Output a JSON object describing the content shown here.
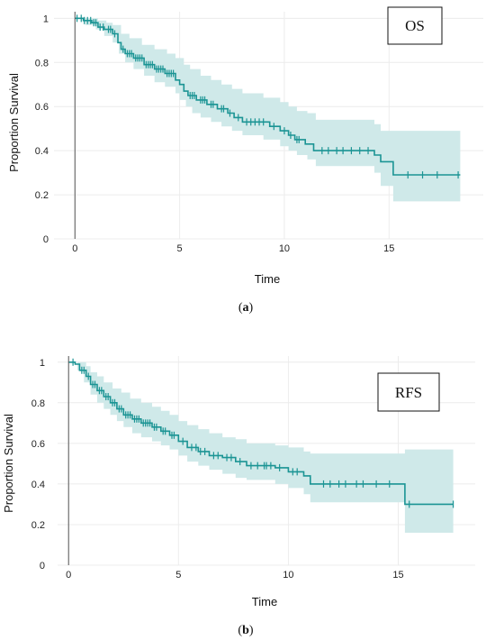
{
  "chart_data": [
    {
      "type": "line",
      "label_box": "OS",
      "xlabel": "Time",
      "ylabel": "Proportion Survival",
      "caption": {
        "open": "(",
        "letter": "a",
        "close": ")"
      },
      "xlim": [
        -1,
        19.5
      ],
      "ylim": [
        0,
        1.03
      ],
      "xticks": [
        0,
        5,
        10,
        15
      ],
      "yticks": [
        0,
        0.2,
        0.4,
        0.6,
        0.8,
        1
      ],
      "ytick_labels": [
        "0",
        "0.2",
        "0.4",
        "0.6",
        "0.8",
        "1"
      ],
      "grid": true,
      "color": "#1b9494",
      "band_color": "#cfe9e9",
      "survival": [
        [
          0,
          1
        ],
        [
          0.4,
          0.99
        ],
        [
          0.8,
          0.98
        ],
        [
          1.1,
          0.96
        ],
        [
          1.4,
          0.95
        ],
        [
          1.8,
          0.93
        ],
        [
          2.05,
          0.89
        ],
        [
          2.2,
          0.86
        ],
        [
          2.4,
          0.84
        ],
        [
          2.8,
          0.82
        ],
        [
          3.3,
          0.79
        ],
        [
          3.8,
          0.77
        ],
        [
          4.3,
          0.75
        ],
        [
          4.8,
          0.72
        ],
        [
          5.0,
          0.7
        ],
        [
          5.2,
          0.67
        ],
        [
          5.4,
          0.65
        ],
        [
          5.8,
          0.63
        ],
        [
          6.3,
          0.61
        ],
        [
          6.8,
          0.59
        ],
        [
          7.3,
          0.57
        ],
        [
          7.6,
          0.55
        ],
        [
          8.0,
          0.53
        ],
        [
          9.3,
          0.51
        ],
        [
          9.8,
          0.49
        ],
        [
          10.2,
          0.47
        ],
        [
          10.5,
          0.45
        ],
        [
          11.0,
          0.43
        ],
        [
          11.4,
          0.4
        ],
        [
          14.3,
          0.38
        ],
        [
          14.6,
          0.35
        ],
        [
          15.2,
          0.29
        ],
        [
          18.4,
          0.29
        ]
      ],
      "ci_upper": [
        [
          0,
          1
        ],
        [
          0.8,
          1
        ],
        [
          1.1,
          0.99
        ],
        [
          1.5,
          0.98
        ],
        [
          1.8,
          0.97
        ],
        [
          2.2,
          0.93
        ],
        [
          2.6,
          0.91
        ],
        [
          3.2,
          0.88
        ],
        [
          3.8,
          0.86
        ],
        [
          4.4,
          0.84
        ],
        [
          4.8,
          0.82
        ],
        [
          5.2,
          0.79
        ],
        [
          5.5,
          0.77
        ],
        [
          6.0,
          0.74
        ],
        [
          6.5,
          0.72
        ],
        [
          7.0,
          0.7
        ],
        [
          7.5,
          0.68
        ],
        [
          8.0,
          0.66
        ],
        [
          9.0,
          0.64
        ],
        [
          9.8,
          0.62
        ],
        [
          10.2,
          0.6
        ],
        [
          10.6,
          0.58
        ],
        [
          11.1,
          0.57
        ],
        [
          11.5,
          0.54
        ],
        [
          14.3,
          0.52
        ],
        [
          14.6,
          0.49
        ],
        [
          18.4,
          0.49
        ]
      ],
      "ci_lower": [
        [
          0,
          1
        ],
        [
          0.5,
          0.97
        ],
        [
          1.0,
          0.95
        ],
        [
          1.4,
          0.92
        ],
        [
          1.8,
          0.89
        ],
        [
          2.1,
          0.84
        ],
        [
          2.4,
          0.8
        ],
        [
          2.8,
          0.77
        ],
        [
          3.3,
          0.74
        ],
        [
          3.8,
          0.71
        ],
        [
          4.3,
          0.69
        ],
        [
          4.8,
          0.66
        ],
        [
          5.0,
          0.63
        ],
        [
          5.3,
          0.6
        ],
        [
          5.6,
          0.57
        ],
        [
          6.0,
          0.55
        ],
        [
          6.5,
          0.53
        ],
        [
          7.0,
          0.51
        ],
        [
          7.5,
          0.49
        ],
        [
          8.0,
          0.47
        ],
        [
          9.0,
          0.45
        ],
        [
          9.8,
          0.42
        ],
        [
          10.2,
          0.4
        ],
        [
          10.6,
          0.38
        ],
        [
          11.1,
          0.36
        ],
        [
          11.5,
          0.33
        ],
        [
          14.3,
          0.3
        ],
        [
          14.6,
          0.24
        ],
        [
          15.2,
          0.17
        ],
        [
          18.4,
          0.17
        ]
      ],
      "censor_times": [
        0.1,
        0.3,
        0.45,
        0.6,
        0.75,
        0.9,
        1.0,
        1.2,
        1.35,
        1.6,
        1.7,
        1.9,
        2.3,
        2.5,
        2.6,
        2.7,
        2.9,
        3.0,
        3.1,
        3.2,
        3.4,
        3.5,
        3.6,
        3.7,
        3.9,
        4.0,
        4.1,
        4.2,
        4.4,
        4.5,
        4.6,
        4.7,
        5.5,
        5.6,
        5.7,
        6.0,
        6.1,
        6.2,
        6.5,
        6.6,
        7.0,
        7.1,
        7.4,
        7.8,
        8.2,
        8.4,
        8.6,
        8.8,
        9.0,
        9.5,
        10.0,
        10.3,
        10.6,
        10.7,
        11.8,
        12.1,
        12.5,
        12.8,
        13.2,
        13.6,
        14.0,
        15.9,
        16.6,
        17.3,
        18.3
      ]
    },
    {
      "type": "line",
      "label_box": "RFS",
      "xlabel": "Time",
      "ylabel": "Proportion Survival",
      "caption": {
        "open": "(",
        "letter": "b",
        "close": ")"
      },
      "xlim": [
        -0.5,
        18.5
      ],
      "ylim": [
        0,
        1.03
      ],
      "xticks": [
        0,
        5,
        10,
        15
      ],
      "yticks": [
        0,
        0.2,
        0.4,
        0.6,
        0.8,
        1
      ],
      "ytick_labels": [
        "0",
        "0.2",
        "0.4",
        "0.6",
        "0.8",
        "1"
      ],
      "grid": true,
      "color": "#1b9494",
      "band_color": "#cfe9e9",
      "survival": [
        [
          0,
          1
        ],
        [
          0.3,
          0.99
        ],
        [
          0.5,
          0.96
        ],
        [
          0.8,
          0.93
        ],
        [
          1.0,
          0.89
        ],
        [
          1.3,
          0.86
        ],
        [
          1.6,
          0.83
        ],
        [
          1.9,
          0.8
        ],
        [
          2.2,
          0.77
        ],
        [
          2.5,
          0.74
        ],
        [
          2.9,
          0.72
        ],
        [
          3.3,
          0.7
        ],
        [
          3.8,
          0.68
        ],
        [
          4.2,
          0.66
        ],
        [
          4.6,
          0.64
        ],
        [
          5.0,
          0.61
        ],
        [
          5.4,
          0.58
        ],
        [
          5.9,
          0.56
        ],
        [
          6.4,
          0.54
        ],
        [
          7.0,
          0.53
        ],
        [
          7.6,
          0.51
        ],
        [
          8.1,
          0.49
        ],
        [
          9.4,
          0.48
        ],
        [
          10.0,
          0.46
        ],
        [
          10.7,
          0.44
        ],
        [
          11.0,
          0.4
        ],
        [
          15.3,
          0.3
        ],
        [
          17.5,
          0.3
        ]
      ],
      "ci_upper": [
        [
          0,
          1
        ],
        [
          0.5,
          1
        ],
        [
          0.8,
          0.98
        ],
        [
          1.0,
          0.95
        ],
        [
          1.3,
          0.93
        ],
        [
          1.6,
          0.9
        ],
        [
          2.0,
          0.87
        ],
        [
          2.4,
          0.85
        ],
        [
          2.8,
          0.82
        ],
        [
          3.3,
          0.8
        ],
        [
          3.8,
          0.78
        ],
        [
          4.2,
          0.76
        ],
        [
          4.6,
          0.74
        ],
        [
          5.0,
          0.71
        ],
        [
          5.4,
          0.69
        ],
        [
          5.9,
          0.67
        ],
        [
          6.4,
          0.65
        ],
        [
          7.0,
          0.63
        ],
        [
          7.6,
          0.62
        ],
        [
          8.1,
          0.6
        ],
        [
          9.4,
          0.59
        ],
        [
          10.0,
          0.58
        ],
        [
          10.7,
          0.56
        ],
        [
          11.0,
          0.55
        ],
        [
          15.3,
          0.57
        ],
        [
          17.5,
          0.57
        ]
      ],
      "ci_lower": [
        [
          0,
          1
        ],
        [
          0.4,
          0.96
        ],
        [
          0.7,
          0.9
        ],
        [
          1.0,
          0.84
        ],
        [
          1.3,
          0.8
        ],
        [
          1.6,
          0.77
        ],
        [
          1.9,
          0.74
        ],
        [
          2.2,
          0.71
        ],
        [
          2.5,
          0.68
        ],
        [
          2.9,
          0.65
        ],
        [
          3.3,
          0.63
        ],
        [
          3.8,
          0.61
        ],
        [
          4.2,
          0.59
        ],
        [
          4.6,
          0.57
        ],
        [
          5.0,
          0.54
        ],
        [
          5.4,
          0.51
        ],
        [
          5.9,
          0.49
        ],
        [
          6.4,
          0.47
        ],
        [
          7.0,
          0.45
        ],
        [
          7.6,
          0.43
        ],
        [
          8.1,
          0.42
        ],
        [
          9.4,
          0.4
        ],
        [
          10.0,
          0.38
        ],
        [
          10.7,
          0.35
        ],
        [
          11.0,
          0.31
        ],
        [
          15.3,
          0.16
        ],
        [
          17.5,
          0.16
        ]
      ],
      "censor_times": [
        0.2,
        0.6,
        0.7,
        0.9,
        1.1,
        1.2,
        1.4,
        1.5,
        1.7,
        1.8,
        2.0,
        2.1,
        2.3,
        2.4,
        2.6,
        2.7,
        2.8,
        3.0,
        3.1,
        3.2,
        3.4,
        3.5,
        3.6,
        3.7,
        3.9,
        4.0,
        4.3,
        4.4,
        4.7,
        4.8,
        5.2,
        5.6,
        5.8,
        6.0,
        6.2,
        6.6,
        6.8,
        7.2,
        7.4,
        7.8,
        8.3,
        8.6,
        8.9,
        9.0,
        9.2,
        9.6,
        10.2,
        10.4,
        11.6,
        11.9,
        12.3,
        12.6,
        13.1,
        13.4,
        14.0,
        14.6,
        15.5,
        17.5
      ]
    }
  ]
}
